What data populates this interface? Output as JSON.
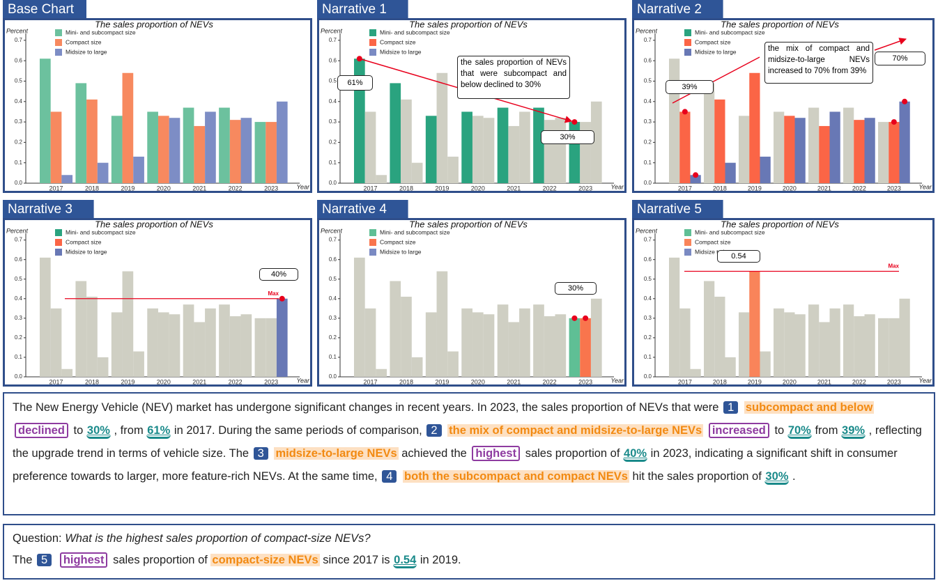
{
  "chart_data": [
    {
      "type": "bar",
      "panel": "Base Chart",
      "title": "The sales proportion of NEVs",
      "y_label": "Percent",
      "x_label": "Year",
      "categories": [
        "2017",
        "2018",
        "2019",
        "2020",
        "2021",
        "2022",
        "2023"
      ],
      "series": [
        {
          "name": "Mini- and subcompact size",
          "color": "#6cc19e",
          "values": [
            0.61,
            0.49,
            0.33,
            0.35,
            0.37,
            0.37,
            0.3
          ]
        },
        {
          "name": "Compact size",
          "color": "#f7895f",
          "values": [
            0.35,
            0.41,
            0.54,
            0.33,
            0.28,
            0.31,
            0.3
          ]
        },
        {
          "name": "Midsize to large",
          "color": "#7d8dc5",
          "values": [
            0.04,
            0.1,
            0.13,
            0.32,
            0.35,
            0.32,
            0.4
          ]
        }
      ],
      "ylim": [
        0,
        0.72
      ],
      "yticks": [
        {
          "value": 0,
          "label": "0.0"
        },
        0.1,
        0.2,
        0.3,
        0.4,
        0.5,
        0.6,
        0.7
      ],
      "legend": "top-left"
    },
    {
      "type": "bar",
      "panel": "Narrative 1",
      "title": "The sales proportion of NEVs",
      "y_label": "Percent",
      "x_label": "Year",
      "categories": [
        "2017",
        "2018",
        "2019",
        "2020",
        "2021",
        "2022",
        "2023"
      ],
      "muted_color": "#cfcfc3",
      "series": [
        {
          "name": "Mini- and subcompact size",
          "color": "#2aa37f",
          "values": [
            0.61,
            0.49,
            0.33,
            0.35,
            0.37,
            0.37,
            0.3
          ],
          "highlight": [
            0,
            1,
            2,
            3,
            4,
            5,
            6
          ],
          "dots": [
            0,
            6
          ]
        },
        {
          "name": "Compact size",
          "color": "#fb6546",
          "values": [
            0.35,
            0.41,
            0.54,
            0.33,
            0.28,
            0.31,
            0.3
          ]
        },
        {
          "name": "Midsize to large",
          "color": "#7a8ac3",
          "values": [
            0.04,
            0.1,
            0.13,
            0.32,
            0.35,
            0.32,
            0.4
          ]
        }
      ],
      "ylim": [
        0,
        0.72
      ],
      "yticks": [
        {
          "value": 0,
          "label": "0.0"
        },
        0.1,
        0.2,
        0.3,
        0.4,
        0.5,
        0.6,
        0.7
      ],
      "legend": "top-left",
      "callouts": [
        "61%",
        "30%"
      ],
      "note": "the sales proportion of NEVs that were subcompact and below declined to 30%"
    },
    {
      "type": "bar",
      "panel": "Narrative 2",
      "title": "The sales proportion of NEVs",
      "y_label": "Percent",
      "x_label": "Year",
      "categories": [
        "2017",
        "2018",
        "2019",
        "2020",
        "2021",
        "2022",
        "2023"
      ],
      "muted_color": "#cfcfc3",
      "series": [
        {
          "name": "Mini- and subcompact size",
          "color": "#2aa37f",
          "values": [
            0.61,
            0.49,
            0.33,
            0.35,
            0.37,
            0.37,
            0.3
          ]
        },
        {
          "name": "Compact size",
          "color": "#fb6546",
          "values": [
            0.35,
            0.41,
            0.54,
            0.33,
            0.28,
            0.31,
            0.3
          ],
          "highlight": [
            0,
            1,
            2,
            3,
            4,
            5,
            6
          ],
          "dots": [
            0,
            6
          ]
        },
        {
          "name": "Midsize to large",
          "color": "#6878b5",
          "values": [
            0.04,
            0.1,
            0.13,
            0.32,
            0.35,
            0.32,
            0.4
          ],
          "highlight": [
            0,
            1,
            2,
            3,
            4,
            5,
            6
          ],
          "dots": [
            0,
            6
          ]
        }
      ],
      "ylim": [
        0,
        0.72
      ],
      "yticks": [
        {
          "value": 0,
          "label": "0.0"
        },
        0.1,
        0.2,
        0.3,
        0.4,
        0.5,
        0.6,
        0.7
      ],
      "legend": "top-left",
      "callouts": [
        "39%",
        "70%"
      ],
      "note": "the mix of compact and midsize-to-large NEVs increased to 70% from 39%"
    },
    {
      "type": "bar",
      "panel": "Narrative 3",
      "title": "The sales proportion of NEVs",
      "y_label": "Percent",
      "x_label": "Year",
      "categories": [
        "2017",
        "2018",
        "2019",
        "2020",
        "2021",
        "2022",
        "2023"
      ],
      "muted_color": "#cfcfc3",
      "series": [
        {
          "name": "Mini- and subcompact size",
          "color": "#2aa37f",
          "values": [
            0.61,
            0.49,
            0.33,
            0.35,
            0.37,
            0.37,
            0.3
          ]
        },
        {
          "name": "Compact size",
          "color": "#fb6546",
          "values": [
            0.35,
            0.41,
            0.54,
            0.33,
            0.28,
            0.31,
            0.3
          ]
        },
        {
          "name": "Midsize to large",
          "color": "#6878b5",
          "values": [
            0.04,
            0.1,
            0.13,
            0.32,
            0.35,
            0.32,
            0.4
          ],
          "highlight": [
            6
          ],
          "dots": [
            6
          ]
        }
      ],
      "ylim": [
        0,
        0.72
      ],
      "yticks": [
        {
          "value": 0,
          "label": "0.0"
        },
        0.1,
        0.2,
        0.3,
        0.4,
        0.5,
        0.6,
        0.7
      ],
      "legend": "top-left",
      "callouts": [
        "40%"
      ],
      "ref_line": {
        "value": 0.4,
        "label": "Max"
      }
    },
    {
      "type": "bar",
      "panel": "Narrative 4",
      "title": "The sales proportion of NEVs",
      "y_label": "Percent",
      "x_label": "Year",
      "categories": [
        "2017",
        "2018",
        "2019",
        "2020",
        "2021",
        "2022",
        "2023"
      ],
      "muted_color": "#cfcfc3",
      "series": [
        {
          "name": "Mini- and subcompact size",
          "color": "#5fbf95",
          "values": [
            0.61,
            0.49,
            0.33,
            0.35,
            0.37,
            0.37,
            0.3
          ],
          "highlight": [
            6
          ],
          "dots": [
            6
          ]
        },
        {
          "name": "Compact size",
          "color": "#f9754d",
          "values": [
            0.35,
            0.41,
            0.54,
            0.33,
            0.28,
            0.31,
            0.3
          ],
          "highlight": [
            6
          ],
          "dots": [
            6
          ]
        },
        {
          "name": "Midsize to large",
          "color": "#7a8ac3",
          "values": [
            0.04,
            0.1,
            0.13,
            0.32,
            0.35,
            0.32,
            0.4
          ]
        }
      ],
      "ylim": [
        0,
        0.72
      ],
      "yticks": [
        {
          "value": 0,
          "label": "0.0"
        },
        0.1,
        0.2,
        0.3,
        0.4,
        0.5,
        0.6,
        0.7
      ],
      "legend": "top-left",
      "callouts": [
        "30%"
      ]
    },
    {
      "type": "bar",
      "panel": "Narrative 5",
      "title": "The sales proportion of NEVs",
      "y_label": "Percent",
      "x_label": "Year",
      "categories": [
        "2017",
        "2018",
        "2019",
        "2020",
        "2021",
        "2022",
        "2023"
      ],
      "muted_color": "#cfcfc3",
      "series": [
        {
          "name": "Mini- and subcompact size",
          "color": "#5fbf95",
          "values": [
            0.61,
            0.49,
            0.33,
            0.35,
            0.37,
            0.37,
            0.3
          ]
        },
        {
          "name": "Compact size",
          "color": "#f9845a",
          "values": [
            0.35,
            0.41,
            0.54,
            0.33,
            0.28,
            0.31,
            0.3
          ],
          "highlight": [
            2
          ]
        },
        {
          "name": "Midsize to large",
          "color": "#7a8ac3",
          "values": [
            0.04,
            0.1,
            0.13,
            0.32,
            0.35,
            0.32,
            0.4
          ]
        }
      ],
      "ylim": [
        0,
        0.72
      ],
      "yticks": [
        {
          "value": 0,
          "label": "0.0"
        },
        0.1,
        0.2,
        0.3,
        0.4,
        0.5,
        0.6,
        0.7
      ],
      "legend": "top-left",
      "callouts": [
        "0.54"
      ],
      "ref_line": {
        "value": 0.54,
        "label": "Max"
      }
    }
  ],
  "narrative": {
    "segments": [
      {
        "text": "The New Energy Vehicle (NEV) market has undergone significant changes in recent years. In 2023, the sales proportion of NEVs that were",
        "style": "plain"
      },
      {
        "text": "1",
        "style": "badge"
      },
      {
        "text": "subcompact and below",
        "style": "entity"
      },
      {
        "text": "declined",
        "style": "trend"
      },
      {
        "text": "to",
        "style": "plain"
      },
      {
        "text": "30%",
        "style": "value"
      },
      {
        "text": ", from",
        "style": "plain"
      },
      {
        "text": "61%",
        "style": "value"
      },
      {
        "text": "in 2017. During the same periods of comparison,",
        "style": "plain"
      },
      {
        "text": "2",
        "style": "badge"
      },
      {
        "text": "the mix of compact and midsize-to-large NEVs",
        "style": "entity"
      },
      {
        "text": "increased",
        "style": "trend"
      },
      {
        "text": "to",
        "style": "plain"
      },
      {
        "text": "70%",
        "style": "value"
      },
      {
        "text": "from",
        "style": "plain"
      },
      {
        "text": "39%",
        "style": "value"
      },
      {
        "text": ", reflecting the upgrade trend in terms of vehicle size. The",
        "style": "plain"
      },
      {
        "text": "3",
        "style": "badge"
      },
      {
        "text": "midsize-to-large NEVs",
        "style": "entity"
      },
      {
        "text": "achieved the",
        "style": "plain"
      },
      {
        "text": "highest",
        "style": "trend"
      },
      {
        "text": "sales proportion of",
        "style": "plain"
      },
      {
        "text": "40%",
        "style": "value"
      },
      {
        "text": "in 2023, indicating a significant shift in consumer preference towards to larger, more feature-rich NEVs. At the same time,",
        "style": "plain"
      },
      {
        "text": "4",
        "style": "badge"
      },
      {
        "text": "both the subcompact and compact NEVs",
        "style": "entity"
      },
      {
        "text": "hit the sales proportion of",
        "style": "plain"
      },
      {
        "text": "30%",
        "style": "value"
      },
      {
        "text": ".",
        "style": "plain"
      }
    ]
  },
  "question": {
    "label": "Question:",
    "text": "What is the highest sales proportion of compact-size NEVs?",
    "answer": [
      {
        "text": "The",
        "style": "plain"
      },
      {
        "text": "5",
        "style": "badge"
      },
      {
        "text": "highest",
        "style": "trend"
      },
      {
        "text": "sales proportion of",
        "style": "plain"
      },
      {
        "text": "compact-size NEVs",
        "style": "entity"
      },
      {
        "text": "since 2017 is",
        "style": "plain"
      },
      {
        "text": "0.54",
        "style": "value"
      },
      {
        "text": "in 2019.",
        "style": "plain"
      }
    ]
  }
}
